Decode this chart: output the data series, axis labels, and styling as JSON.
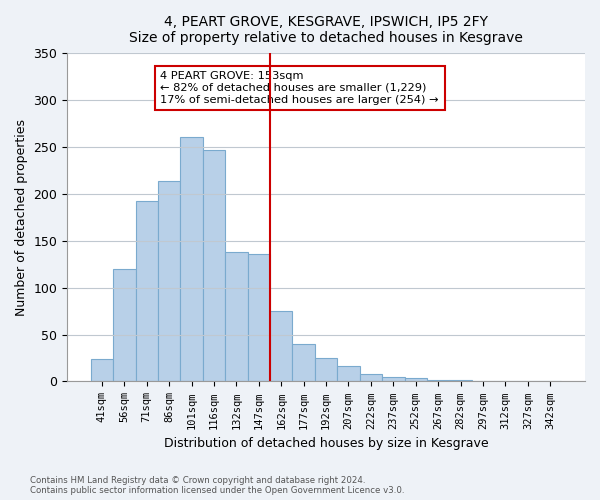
{
  "title": "4, PEART GROVE, KESGRAVE, IPSWICH, IP5 2FY",
  "subtitle": "Size of property relative to detached houses in Kesgrave",
  "xlabel": "Distribution of detached houses by size in Kesgrave",
  "ylabel": "Number of detached properties",
  "bar_labels": [
    "41sqm",
    "56sqm",
    "71sqm",
    "86sqm",
    "101sqm",
    "116sqm",
    "132sqm",
    "147sqm",
    "162sqm",
    "177sqm",
    "192sqm",
    "207sqm",
    "222sqm",
    "237sqm",
    "252sqm",
    "267sqm",
    "282sqm",
    "297sqm",
    "312sqm",
    "327sqm",
    "342sqm"
  ],
  "bar_values": [
    24,
    120,
    193,
    214,
    261,
    247,
    138,
    136,
    75,
    40,
    25,
    16,
    8,
    5,
    4,
    2,
    2,
    1,
    0,
    0,
    1
  ],
  "bar_color": "#b8d0e8",
  "bar_edge_color": "#7aaace",
  "vline_x": 7.5,
  "vline_color": "#cc0000",
  "ylim": [
    0,
    350
  ],
  "yticks": [
    0,
    50,
    100,
    150,
    200,
    250,
    300,
    350
  ],
  "annotation_title": "4 PEART GROVE: 153sqm",
  "annotation_line1": "← 82% of detached houses are smaller (1,229)",
  "annotation_line2": "17% of semi-detached houses are larger (254) →",
  "footer1": "Contains HM Land Registry data © Crown copyright and database right 2024.",
  "footer2": "Contains public sector information licensed under the Open Government Licence v3.0.",
  "bg_color": "#eef2f7",
  "plot_bg_color": "#ffffff",
  "grid_color": "#c0c8d0"
}
